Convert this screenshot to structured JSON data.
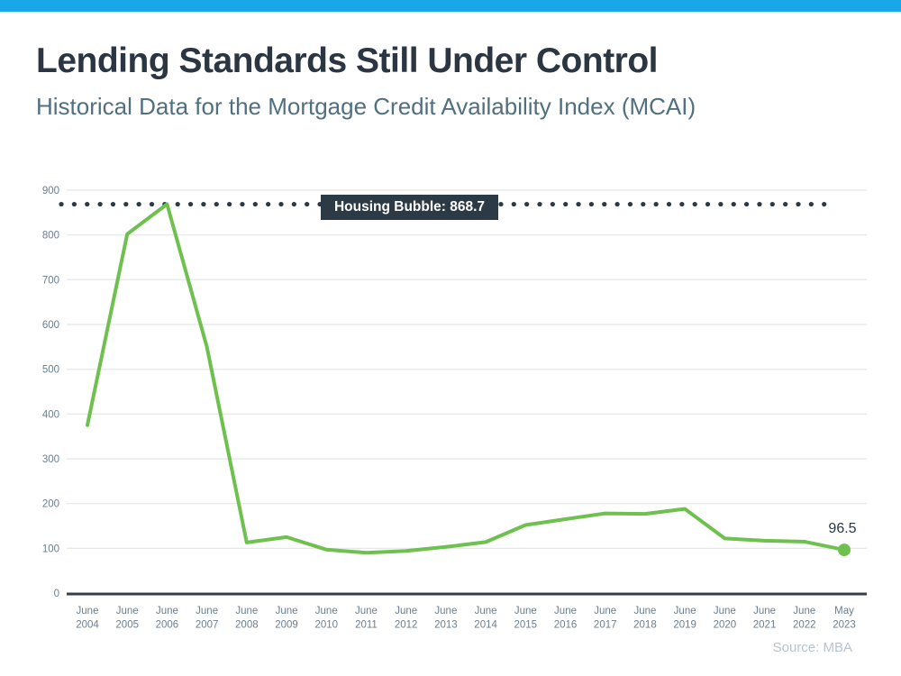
{
  "header": {
    "title": "Lending Standards Still Under Control",
    "subtitle": "Historical Data for the Mortgage Credit Availability Index (MCAI)"
  },
  "footer": {
    "source": "Source: MBA"
  },
  "colors": {
    "accent_bar": "#18a8ea",
    "line": "#6ec04f",
    "threshold": "#2c3a45",
    "title_text": "#2b3642",
    "subtitle_text": "#51707f",
    "tick_text": "#6b7e8f",
    "source_text": "#b6c3cd",
    "gridline": "#e3e5e6",
    "axis_line": "#333f49"
  },
  "chart_data": {
    "type": "line",
    "title": "Lending Standards Still Under Control",
    "subtitle": "Historical Data for the Mortgage Credit Availability Index (MCAI)",
    "series_name": "Mortgage Credit Availability Index (MCAI)",
    "categories": [
      "June 2004",
      "June 2005",
      "June 2006",
      "June 2007",
      "June 2008",
      "June 2009",
      "June 2010",
      "June 2011",
      "June 2012",
      "June 2013",
      "June 2014",
      "June 2015",
      "June 2016",
      "June 2017",
      "June 2018",
      "June 2019",
      "June 2020",
      "June 2021",
      "June 2022",
      "May 2023"
    ],
    "values": [
      375,
      802,
      868.7,
      550,
      113,
      125,
      97,
      90,
      94,
      103,
      114,
      152,
      165,
      178,
      177,
      188,
      122,
      117,
      115,
      96.5
    ],
    "xlabel": "",
    "ylabel": "",
    "ylim": [
      0,
      900
    ],
    "y_ticks": [
      0,
      100,
      200,
      300,
      400,
      500,
      600,
      700,
      800,
      900
    ],
    "grid": "horizontal",
    "legend": "none",
    "threshold": {
      "value": 868.7,
      "label": "Housing Bubble: 868.7"
    },
    "end_point": {
      "value": 96.5,
      "label": "96.5"
    }
  }
}
